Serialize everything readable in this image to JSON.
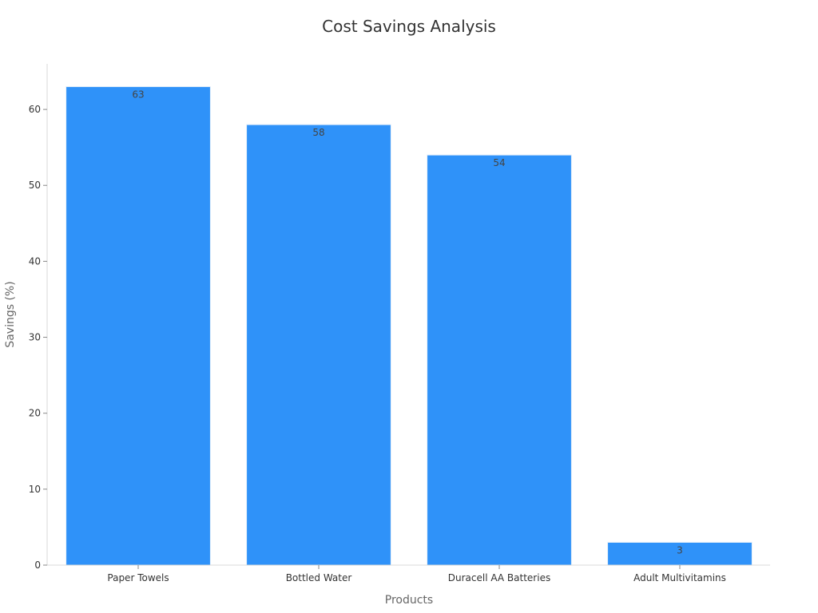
{
  "chart_data": {
    "type": "bar",
    "title": "Cost Savings Analysis",
    "xlabel": "Products",
    "ylabel": "Savings (%)",
    "categories": [
      "Paper Towels",
      "Bottled Water",
      "Duracell AA Batteries",
      "Adult Multivitamins"
    ],
    "values": [
      63,
      58,
      54,
      3
    ],
    "data_labels": [
      "63",
      "58",
      "54",
      "3"
    ],
    "ylim": [
      0,
      66
    ],
    "yticks": [
      0,
      10,
      20,
      30,
      40,
      50,
      60
    ],
    "ytick_labels": [
      "0",
      "10",
      "20",
      "30",
      "40",
      "50",
      "60"
    ],
    "grid": false,
    "legend": "none",
    "bar_color": "#2f92f9"
  }
}
